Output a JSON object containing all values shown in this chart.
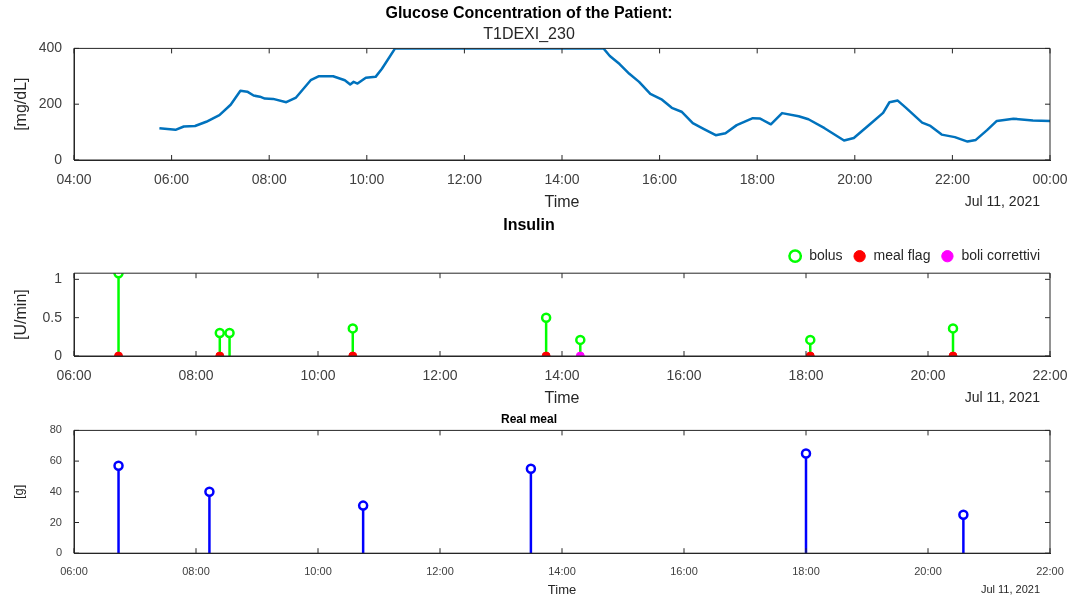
{
  "chart_data": [
    {
      "type": "line",
      "title": "Glucose Concentration of the Patient:",
      "subtitle": "T1DEXI_230",
      "xlabel": "Time",
      "ylabel": "[mg/dL]",
      "annotations": [
        "Jul 11, 2021"
      ],
      "x": [
        5.75,
        6.08,
        6.25,
        6.48,
        6.71,
        6.98,
        7.21,
        7.41,
        7.55,
        7.68,
        7.81,
        7.91,
        8.08,
        8.35,
        8.55,
        8.85,
        9.01,
        9.31,
        9.55,
        9.66,
        9.73,
        9.81,
        9.98,
        10.18,
        10.31,
        10.58,
        14.85,
        14.98,
        15.18,
        15.38,
        15.58,
        15.81,
        16.05,
        16.25,
        16.45,
        16.68,
        16.91,
        17.15,
        17.35,
        17.58,
        17.91,
        18.05,
        18.28,
        18.51,
        18.85,
        19.05,
        19.38,
        19.78,
        19.98,
        20.31,
        20.58,
        20.71,
        20.88,
        21.05,
        21.38,
        21.55,
        21.78,
        22.05,
        22.31,
        22.48,
        22.71,
        22.91,
        23.25,
        23.65,
        24
      ],
      "series": [
        {
          "color": "#0072bd",
          "values": [
            114,
            108,
            120,
            122,
            137,
            161,
            198,
            248,
            245,
            231,
            227,
            220,
            219,
            207,
            224,
            286,
            300,
            300,
            286,
            271,
            280,
            274,
            295,
            298,
            327,
            400,
            400,
            373,
            344,
            309,
            280,
            237,
            216,
            187,
            173,
            132,
            111,
            89,
            96,
            125,
            150,
            149,
            128,
            168,
            157,
            146,
            114,
            70,
            79,
            128,
            169,
            207,
            213,
            187,
            134,
            122,
            91,
            82,
            66,
            72,
            107,
            140,
            148,
            142,
            140
          ]
        }
      ],
      "xlim": [
        4,
        24
      ],
      "xticks": [
        {
          "value": 4,
          "label": "04:00"
        },
        {
          "value": 6,
          "label": "06:00"
        },
        {
          "value": 8,
          "label": "08:00"
        },
        {
          "value": 10,
          "label": "10:00"
        },
        {
          "value": 12,
          "label": "12:00"
        },
        {
          "value": 14,
          "label": "14:00"
        },
        {
          "value": 16,
          "label": "16:00"
        },
        {
          "value": 18,
          "label": "18:00"
        },
        {
          "value": 20,
          "label": "20:00"
        },
        {
          "value": 22,
          "label": "22:00"
        },
        {
          "value": 24,
          "label": "00:00"
        }
      ],
      "ylim": [
        0,
        400
      ],
      "yticks": [
        0,
        200,
        400
      ]
    },
    {
      "type": "lollipop",
      "title": "Insulin",
      "xlabel": "Time",
      "ylabel": "[U/min]",
      "annotations": [
        "Jul 11, 2021"
      ],
      "legend": "top right",
      "series": [
        {
          "name": "bolus",
          "marker": "circle",
          "color": "#00ff00",
          "x": [
            6.73,
            8.39,
            8.55,
            10.57,
            13.74,
            14.3,
            18.07,
            20.41
          ],
          "values": [
            1.08,
            0.3,
            0.3,
            0.36,
            0.5,
            0.21,
            0.21,
            0.36
          ]
        },
        {
          "name": "meal flag",
          "type": "scatter",
          "marker": "circle",
          "color": "#ff0000",
          "x": [
            6.73,
            8.39,
            10.57,
            13.74,
            18.07,
            20.41
          ],
          "values": [
            0,
            0,
            0,
            0,
            0,
            0
          ]
        },
        {
          "name": "boli correttivi",
          "type": "scatter",
          "marker": "circle",
          "color": "#ff00ff",
          "x": [
            14.3
          ],
          "values": [
            0
          ]
        }
      ],
      "xlim": [
        6,
        22
      ],
      "xticks": [
        {
          "value": 6,
          "label": "06:00"
        },
        {
          "value": 8,
          "label": "08:00"
        },
        {
          "value": 10,
          "label": "10:00"
        },
        {
          "value": 12,
          "label": "12:00"
        },
        {
          "value": 14,
          "label": "14:00"
        },
        {
          "value": 16,
          "label": "16:00"
        },
        {
          "value": 18,
          "label": "18:00"
        },
        {
          "value": 20,
          "label": "20:00"
        },
        {
          "value": 22,
          "label": "22:00"
        }
      ],
      "ylim": [
        0,
        1.08
      ],
      "yticks": [
        0,
        0.5,
        1
      ]
    },
    {
      "type": "lollipop",
      "title": "Real meal",
      "xlabel": "Time",
      "ylabel": "[g]",
      "annotations": [
        "Jul 11, 2021"
      ],
      "marker": "circle",
      "x": [
        6.73,
        8.22,
        10.74,
        13.49,
        18.0,
        20.58
      ],
      "series": [
        {
          "color": "#0000ff",
          "values": [
            57,
            40,
            31,
            55,
            65,
            25
          ]
        }
      ],
      "xlim": [
        6,
        22
      ],
      "xticks": [
        {
          "value": 6,
          "label": "06:00"
        },
        {
          "value": 8,
          "label": "08:00"
        },
        {
          "value": 10,
          "label": "10:00"
        },
        {
          "value": 12,
          "label": "12:00"
        },
        {
          "value": 14,
          "label": "14:00"
        },
        {
          "value": 16,
          "label": "16:00"
        },
        {
          "value": 18,
          "label": "18:00"
        },
        {
          "value": 20,
          "label": "20:00"
        },
        {
          "value": 22,
          "label": "22:00"
        }
      ],
      "ylim": [
        0,
        80
      ],
      "yticks": [
        0,
        20,
        40,
        60,
        80
      ]
    }
  ]
}
